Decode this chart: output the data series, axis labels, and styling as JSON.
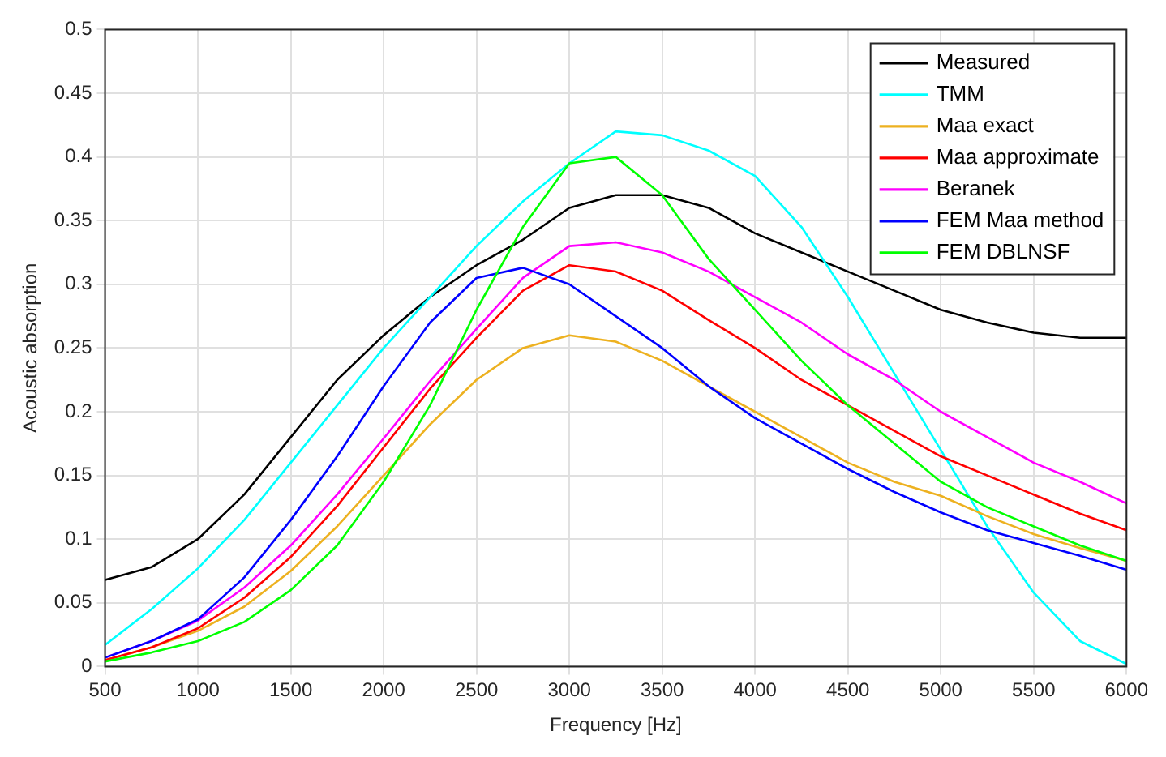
{
  "chart_data": {
    "type": "line",
    "xlabel": "Frequency [Hz]",
    "ylabel": "Acoustic absorption",
    "x": [
      500,
      750,
      1000,
      1250,
      1500,
      1750,
      2000,
      2250,
      2500,
      2750,
      3000,
      3250,
      3500,
      3750,
      4000,
      4250,
      4500,
      4750,
      5000,
      5250,
      5500,
      5750,
      6000
    ],
    "series": [
      {
        "name": "Measured",
        "color": "#000000",
        "values": [
          0.068,
          0.078,
          0.1,
          0.135,
          0.18,
          0.225,
          0.26,
          0.29,
          0.315,
          0.335,
          0.36,
          0.37,
          0.37,
          0.36,
          0.34,
          0.325,
          0.31,
          0.295,
          0.28,
          0.27,
          0.262,
          0.258,
          0.258
        ]
      },
      {
        "name": "TMM",
        "color": "#00ffff",
        "values": [
          0.017,
          0.045,
          0.077,
          0.115,
          0.16,
          0.205,
          0.25,
          0.29,
          0.33,
          0.365,
          0.395,
          0.42,
          0.417,
          0.405,
          0.385,
          0.345,
          0.29,
          0.23,
          0.17,
          0.11,
          0.058,
          0.02,
          0.002
        ]
      },
      {
        "name": "Maa exact",
        "color": "#edb120",
        "values": [
          0.005,
          0.015,
          0.028,
          0.047,
          0.075,
          0.11,
          0.15,
          0.19,
          0.225,
          0.25,
          0.26,
          0.255,
          0.24,
          0.22,
          0.2,
          0.18,
          0.16,
          0.145,
          0.134,
          0.118,
          0.104,
          0.093,
          0.083
        ]
      },
      {
        "name": "Maa approximate",
        "color": "#ff0000",
        "values": [
          0.005,
          0.015,
          0.03,
          0.054,
          0.086,
          0.126,
          0.172,
          0.218,
          0.258,
          0.295,
          0.315,
          0.31,
          0.295,
          0.272,
          0.25,
          0.225,
          0.205,
          0.185,
          0.165,
          0.15,
          0.135,
          0.12,
          0.107
        ]
      },
      {
        "name": "Beranek",
        "color": "#ff00ff",
        "values": [
          0.007,
          0.02,
          0.036,
          0.062,
          0.095,
          0.135,
          0.179,
          0.224,
          0.265,
          0.305,
          0.33,
          0.333,
          0.325,
          0.31,
          0.29,
          0.27,
          0.245,
          0.225,
          0.2,
          0.18,
          0.16,
          0.145,
          0.128
        ]
      },
      {
        "name": "FEM Maa method",
        "color": "#0000ff",
        "values": [
          0.007,
          0.02,
          0.037,
          0.07,
          0.115,
          0.165,
          0.22,
          0.27,
          0.305,
          0.313,
          0.3,
          0.275,
          0.25,
          0.22,
          0.195,
          0.175,
          0.155,
          0.137,
          0.121,
          0.107,
          0.097,
          0.087,
          0.076
        ]
      },
      {
        "name": "FEM DBLNSF",
        "color": "#00ff00",
        "values": [
          0.004,
          0.011,
          0.02,
          0.035,
          0.06,
          0.095,
          0.145,
          0.205,
          0.28,
          0.345,
          0.395,
          0.4,
          0.37,
          0.32,
          0.28,
          0.24,
          0.205,
          0.175,
          0.145,
          0.125,
          0.11,
          0.095,
          0.083
        ]
      }
    ],
    "xlim": [
      500,
      6000
    ],
    "xticks": [
      500,
      1000,
      1500,
      2000,
      2500,
      3000,
      3500,
      4000,
      4500,
      5000,
      5500,
      6000
    ],
    "ylim": [
      0,
      0.5
    ],
    "yticks": [
      0,
      0.05,
      0.1,
      0.15,
      0.2,
      0.25,
      0.3,
      0.35,
      0.4,
      0.45,
      0.5
    ],
    "grid": true,
    "legend": "top right",
    "marker": "none",
    "line_style": "solid"
  }
}
